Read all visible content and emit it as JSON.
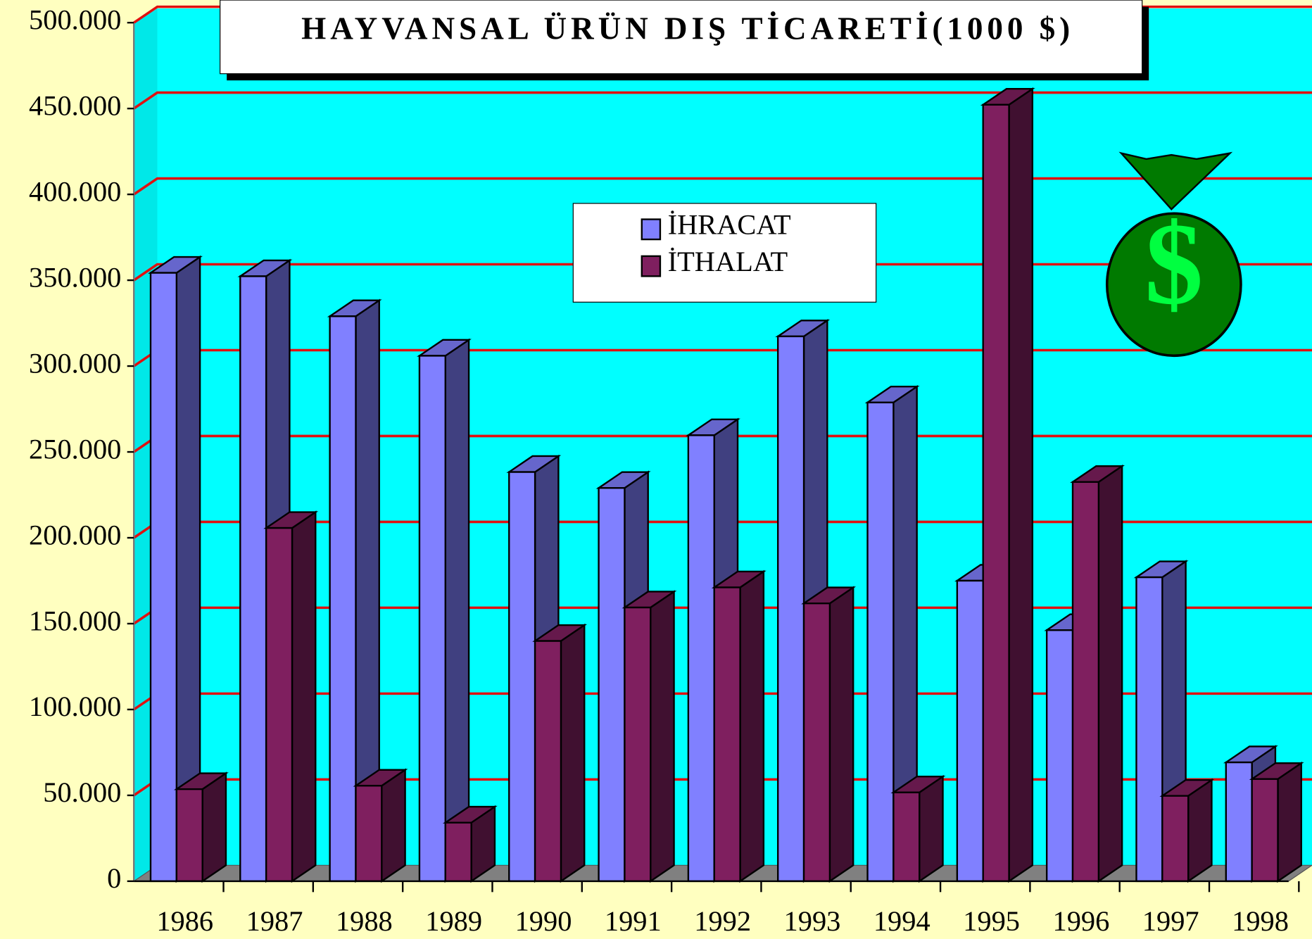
{
  "chart_data": {
    "type": "bar3d",
    "title": "HAYVANSAL ÜRÜN DIŞ TİCARETİ(1000 $)",
    "categories": [
      "1986",
      "1987",
      "1988",
      "1989",
      "1990",
      "1991",
      "1992",
      "1993",
      "1994",
      "1995",
      "1996",
      "1997",
      "1998"
    ],
    "series": [
      {
        "name": "İHRACAT",
        "color": "#8080ff",
        "values": [
          354300,
          352300,
          329000,
          306000,
          238300,
          229000,
          259700,
          317300,
          278800,
          175000,
          146200,
          177000,
          69200
        ]
      },
      {
        "name": "İTHALAT",
        "color": "#7f1f5f",
        "values": [
          53600,
          205700,
          55600,
          34100,
          139900,
          159400,
          171100,
          161800,
          51700,
          452200,
          232500,
          49700,
          59500
        ]
      }
    ],
    "ylim": [
      0,
      500000
    ],
    "yticks": [
      0,
      {
        "value": 50000,
        "label": "50.000"
      },
      {
        "value": 100000,
        "label": "100.000"
      },
      {
        "value": 150000,
        "label": "150.000"
      },
      {
        "value": 200000,
        "label": "200.000"
      },
      {
        "value": 250000,
        "label": "250.000"
      },
      {
        "value": 300000,
        "label": "300.000"
      },
      {
        "value": 350000,
        "label": "350.000"
      },
      {
        "value": 400000,
        "label": "400.000"
      },
      {
        "value": 450000,
        "label": "450.000"
      },
      {
        "value": 500000,
        "label": "500.000"
      }
    ],
    "grid": true
  }
}
